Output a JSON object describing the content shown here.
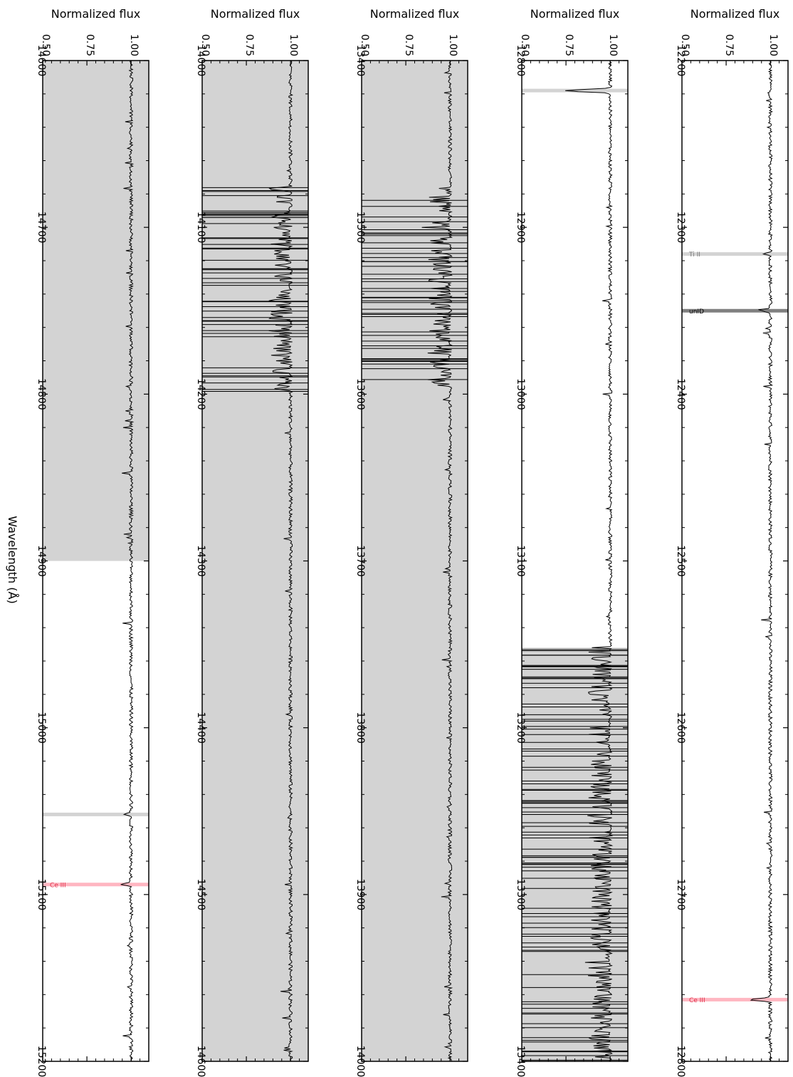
{
  "chart_data": [
    {
      "type": "line",
      "xlabel": "Wavelength (Å)",
      "ylabel": "Normalized flux",
      "xlim": [
        12200,
        12800
      ],
      "ylim": [
        0.5,
        1.1
      ],
      "x_ticks": [
        "12200",
        "12300",
        "12400",
        "12500",
        "12600",
        "12700",
        "12800"
      ],
      "y_ticks": [
        "0.50",
        "0.75",
        "1.00"
      ],
      "shaded_regions": [],
      "line_markers": [
        {
          "label": "Ti II",
          "wavelength": 12316,
          "color": "#d3d3d3"
        },
        {
          "label": "unID",
          "wavelength": 12350,
          "color": "#808080"
        },
        {
          "label": "Ce III",
          "wavelength": 12763,
          "color": "#ffb6c1",
          "text_color": "#e0304a"
        }
      ],
      "absorption_features": [
        {
          "x": 12316,
          "depth": 0.97
        },
        {
          "x": 12350,
          "depth": 0.96
        },
        {
          "x": 12763,
          "depth": 0.88
        }
      ],
      "telluric_region": []
    },
    {
      "type": "line",
      "xlabel": "",
      "ylabel": "Normalized flux",
      "xlim": [
        12800,
        13400
      ],
      "ylim": [
        0.5,
        1.1
      ],
      "x_ticks": [
        "12800",
        "12900",
        "13000",
        "13100",
        "13200",
        "13300",
        "13400"
      ],
      "y_ticks": [
        "0.50",
        "0.75",
        "1.00"
      ],
      "shaded_regions": [
        [
          13152,
          13400
        ]
      ],
      "line_markers": [
        {
          "label": "",
          "wavelength": 12818,
          "color": "#d3d3d3"
        }
      ],
      "absorption_features": [
        {
          "x": 12818,
          "depth": 0.75
        }
      ],
      "telluric_region": [
        [
          13152,
          13400
        ]
      ]
    },
    {
      "type": "line",
      "xlabel": "",
      "ylabel": "Normalized flux",
      "xlim": [
        13400,
        14000
      ],
      "ylim": [
        0.5,
        1.1
      ],
      "x_ticks": [
        "13400",
        "13500",
        "13600",
        "13700",
        "13800",
        "13900",
        "14000"
      ],
      "y_ticks": [
        "0.50",
        "0.75",
        "1.00"
      ],
      "shaded_regions": [
        [
          13400,
          14000
        ]
      ],
      "line_markers": [],
      "absorption_features": [],
      "telluric_region": [
        [
          13475,
          13595
        ]
      ]
    },
    {
      "type": "line",
      "xlabel": "",
      "ylabel": "Normalized flux",
      "xlim": [
        14000,
        14600
      ],
      "ylim": [
        0.5,
        1.1
      ],
      "x_ticks": [
        "14000",
        "14100",
        "14200",
        "14300",
        "14400",
        "14500",
        "14600"
      ],
      "y_ticks": [
        "0.50",
        "0.75",
        "1.00"
      ],
      "shaded_regions": [
        [
          14000,
          14600
        ]
      ],
      "line_markers": [],
      "absorption_features": [],
      "telluric_region": [
        [
          14075,
          14200
        ]
      ]
    },
    {
      "type": "line",
      "xlabel": "",
      "ylabel": "Normalized flux",
      "xlim": [
        14600,
        15200
      ],
      "ylim": [
        0.5,
        1.1
      ],
      "x_ticks": [
        "14600",
        "14700",
        "14800",
        "14900",
        "15000",
        "15100",
        "15200"
      ],
      "y_ticks": [
        "0.50",
        "0.75",
        "1.00"
      ],
      "shaded_regions": [
        [
          14600,
          14900
        ]
      ],
      "line_markers": [
        {
          "label": "",
          "wavelength": 15052,
          "color": "#d3d3d3"
        },
        {
          "label": "Ce III",
          "wavelength": 15094,
          "color": "#ffb6c1",
          "text_color": "#e0304a"
        }
      ],
      "absorption_features": [
        {
          "x": 15052,
          "depth": 0.96
        },
        {
          "x": 15094,
          "depth": 0.95
        }
      ],
      "telluric_region": []
    }
  ]
}
